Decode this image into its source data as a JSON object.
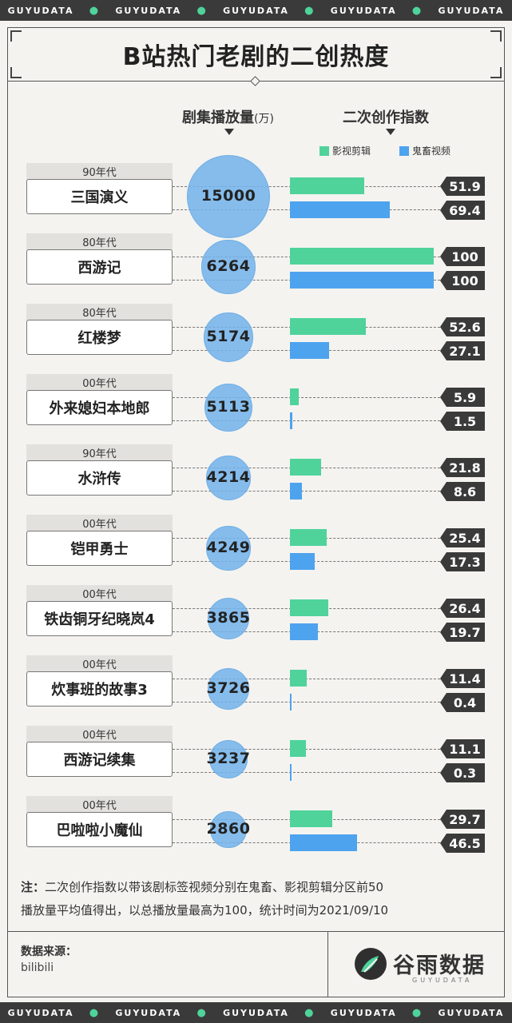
{
  "band": {
    "word": "GUYUDATA"
  },
  "title": "B站热门老剧的二创热度",
  "col_plays": {
    "label": "剧集播放量",
    "unit": "(万)"
  },
  "col_index": {
    "label": "二次创作指数"
  },
  "legend": {
    "green": "影视剪辑",
    "blue": "鬼畜视频"
  },
  "colors": {
    "green": "#4fd39b",
    "blue": "#4ea3ee",
    "bubble": "#72b3ec",
    "dark": "#3a3a3a"
  },
  "chart_data": {
    "type": "bar",
    "categories": [
      "三国演义",
      "西游记",
      "红楼梦",
      "外来媳妇本地郎",
      "水浒传",
      "铠甲勇士",
      "铁齿铜牙纪晓岚4",
      "炊事班的故事3",
      "西游记续集",
      "巴啦啦小魔仙"
    ],
    "eras": [
      "90年代",
      "80年代",
      "80年代",
      "00年代",
      "90年代",
      "00年代",
      "00年代",
      "00年代",
      "00年代",
      "00年代"
    ],
    "plays": [
      15000,
      6264,
      5174,
      5113,
      4214,
      4249,
      3865,
      3726,
      3237,
      2860
    ],
    "series": [
      {
        "name": "影视剪辑",
        "values": [
          51.9,
          100,
          52.6,
          5.9,
          21.8,
          25.4,
          26.4,
          11.4,
          11.1,
          29.7
        ]
      },
      {
        "name": "鬼畜视频",
        "values": [
          69.4,
          100,
          27.1,
          1.5,
          8.6,
          17.3,
          19.7,
          0.4,
          0.3,
          46.5
        ]
      }
    ],
    "xlim": [
      0,
      100
    ]
  },
  "note": {
    "label": "注：",
    "line1": "二次创作指数以带该剧标签视频分别在鬼畜、影视剪辑分区前50",
    "line2": "播放量平均值得出，以总播放量最高为100，统计时间为2021/09/10"
  },
  "source": {
    "label": "数据来源：",
    "value": "bilibili"
  },
  "logo": {
    "text": "谷雨数据",
    "sub": "GUYUDATA"
  }
}
